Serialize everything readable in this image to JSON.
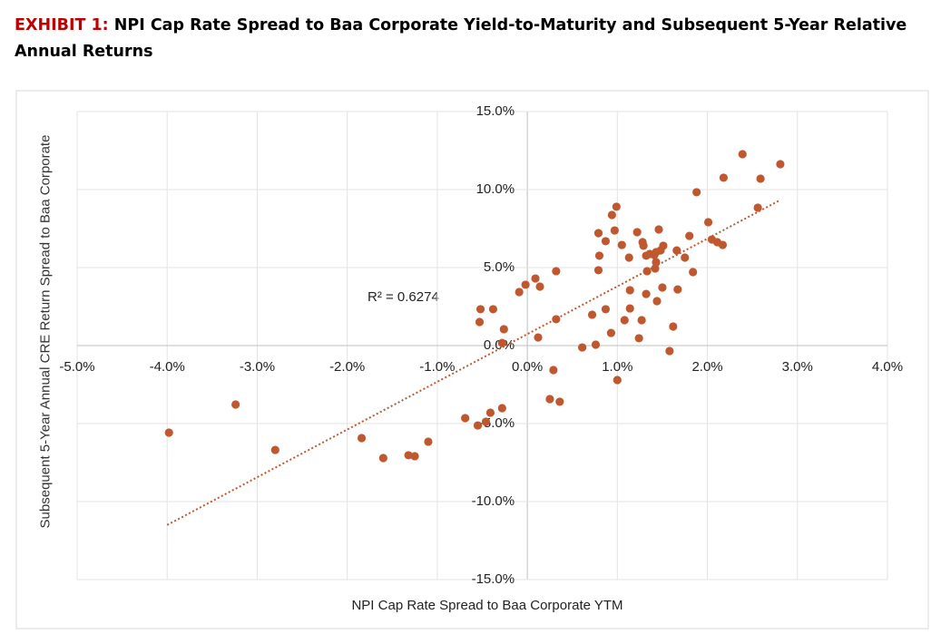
{
  "chart_data": {
    "type": "scatter",
    "title_prefix": "EXHIBIT 1:",
    "title": "NPI Cap Rate Spread to Baa Corporate Yield-to-Maturity and Subsequent 5-Year Relative Annual Returns",
    "x_label": "NPI Cap Rate Spread to Baa Corporate YTM",
    "y_label": "Subsequent 5-Year Annual CRE Return Spread to Baa Corporate",
    "annotation": "R² = 0.6274",
    "color": "#c0582f",
    "grid": true,
    "xlim": [
      -5,
      4
    ],
    "ylim": [
      -15,
      15
    ],
    "xticks": [
      {
        "value": -5,
        "label": "-5.0%"
      },
      {
        "value": -4,
        "label": "-4.0%"
      },
      {
        "value": -3,
        "label": "-3.0%"
      },
      {
        "value": -2,
        "label": "-2.0%"
      },
      {
        "value": -1,
        "label": "-1.0%"
      },
      {
        "value": 0,
        "label": "0.0%"
      },
      {
        "value": 1,
        "label": "1.0%"
      },
      {
        "value": 2,
        "label": "2.0%"
      },
      {
        "value": 3,
        "label": "3.0%"
      },
      {
        "value": 4,
        "label": "4.0%"
      }
    ],
    "yticks": [
      {
        "value": -15,
        "label": "-15.0%"
      },
      {
        "value": -10,
        "label": "-10.0%"
      },
      {
        "value": -5,
        "label": "-5.0%"
      },
      {
        "value": 0,
        "label": "0.0%"
      },
      {
        "value": 5,
        "label": "5.0%"
      },
      {
        "value": 10,
        "label": "10.0%"
      },
      {
        "value": 15,
        "label": "15.0%"
      }
    ],
    "x": [
      -3.98,
      -3.24,
      -2.8,
      -1.84,
      -1.6,
      -1.32,
      -1.25,
      -1.1,
      -0.69,
      -0.55,
      -0.46,
      -0.41,
      -0.28,
      -0.52,
      -0.53,
      -0.38,
      -0.26,
      -0.28,
      -0.09,
      -0.02,
      0.09,
      0.14,
      0.12,
      0.32,
      0.32,
      0.29,
      0.25,
      0.36,
      0.61,
      0.72,
      0.76,
      0.79,
      0.8,
      0.79,
      0.87,
      0.87,
      0.93,
      0.94,
      0.99,
      0.97,
      1.0,
      1.05,
      1.08,
      1.13,
      1.14,
      1.14,
      1.22,
      1.24,
      1.27,
      1.28,
      1.29,
      1.32,
      1.32,
      1.33,
      1.36,
      1.41,
      1.42,
      1.43,
      1.43,
      1.44,
      1.46,
      1.48,
      1.51,
      1.5,
      1.58,
      1.62,
      1.66,
      1.67,
      1.75,
      1.8,
      1.84,
      1.88,
      2.01,
      2.05,
      2.11,
      2.17,
      2.18,
      2.39,
      2.56,
      2.59,
      2.81
    ],
    "values": [
      -5.58,
      -3.78,
      -6.69,
      -5.93,
      -7.21,
      -7.03,
      -7.09,
      -6.16,
      -4.65,
      -5.12,
      -4.88,
      -4.3,
      -4.01,
      2.33,
      1.51,
      2.33,
      1.05,
      0.17,
      3.43,
      3.9,
      4.3,
      3.78,
      0.52,
      4.77,
      1.69,
      -1.57,
      -3.43,
      -3.6,
      -0.12,
      1.98,
      0.06,
      7.21,
      5.76,
      4.83,
      2.33,
      6.69,
      0.81,
      8.37,
      8.9,
      7.38,
      -2.21,
      6.45,
      1.63,
      5.64,
      3.55,
      2.38,
      7.27,
      0.47,
      1.63,
      6.63,
      6.4,
      5.76,
      3.31,
      4.77,
      5.87,
      5.81,
      4.94,
      5.35,
      5.99,
      2.85,
      7.44,
      6.1,
      6.4,
      3.72,
      -0.35,
      1.22,
      6.1,
      3.6,
      5.64,
      7.03,
      4.71,
      9.83,
      7.91,
      6.8,
      6.63,
      6.45,
      10.76,
      12.27,
      8.84,
      10.7,
      11.63
    ],
    "trendline": {
      "x": [
        -4.0,
        2.8
      ],
      "values": [
        -11.5,
        9.3
      ]
    }
  }
}
